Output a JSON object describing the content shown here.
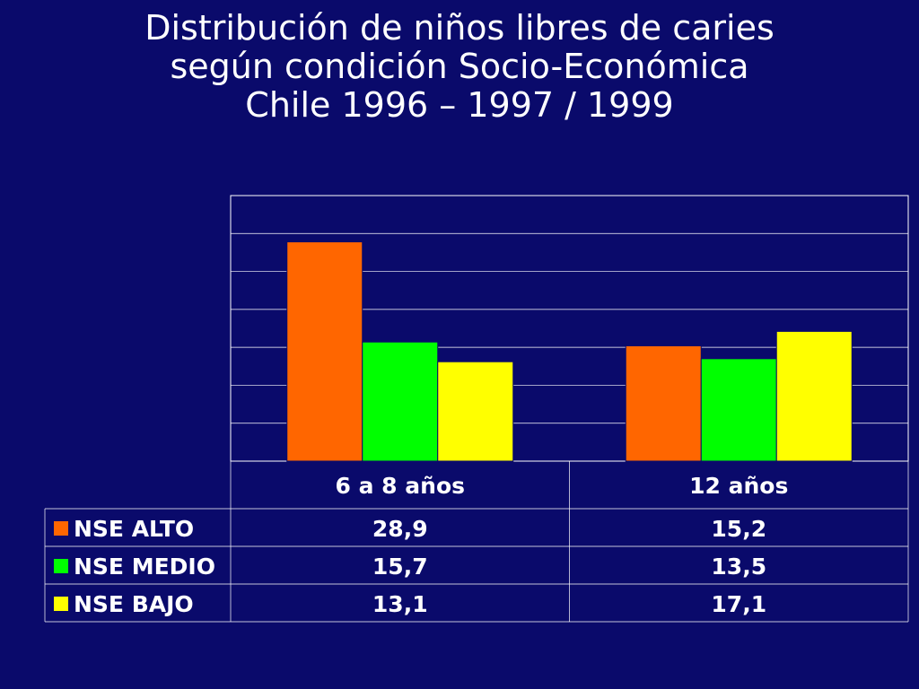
{
  "slide": {
    "title_lines": [
      "Distribución de niños libres de caries",
      "según condición Socio-Económica",
      "Chile 1996 – 1997 / 1999"
    ],
    "background": "#0a0a6b"
  },
  "chart_data": {
    "type": "bar",
    "categories": [
      "6 a 8 años",
      "12 años"
    ],
    "series": [
      {
        "name": "NSE ALTO",
        "color": "#ff6600",
        "values": [
          28.9,
          15.2
        ],
        "labels": [
          "28,9",
          "15,2"
        ]
      },
      {
        "name": "NSE MEDIO",
        "color": "#00ff00",
        "values": [
          15.7,
          13.5
        ],
        "labels": [
          "15,7",
          "13,5"
        ]
      },
      {
        "name": "NSE BAJO",
        "color": "#ffff00",
        "values": [
          13.1,
          17.1
        ],
        "labels": [
          "13,1",
          "17,1"
        ]
      }
    ],
    "ylim": [
      0,
      35
    ],
    "grid": true,
    "legend": "data-table-left",
    "data_table": true
  }
}
